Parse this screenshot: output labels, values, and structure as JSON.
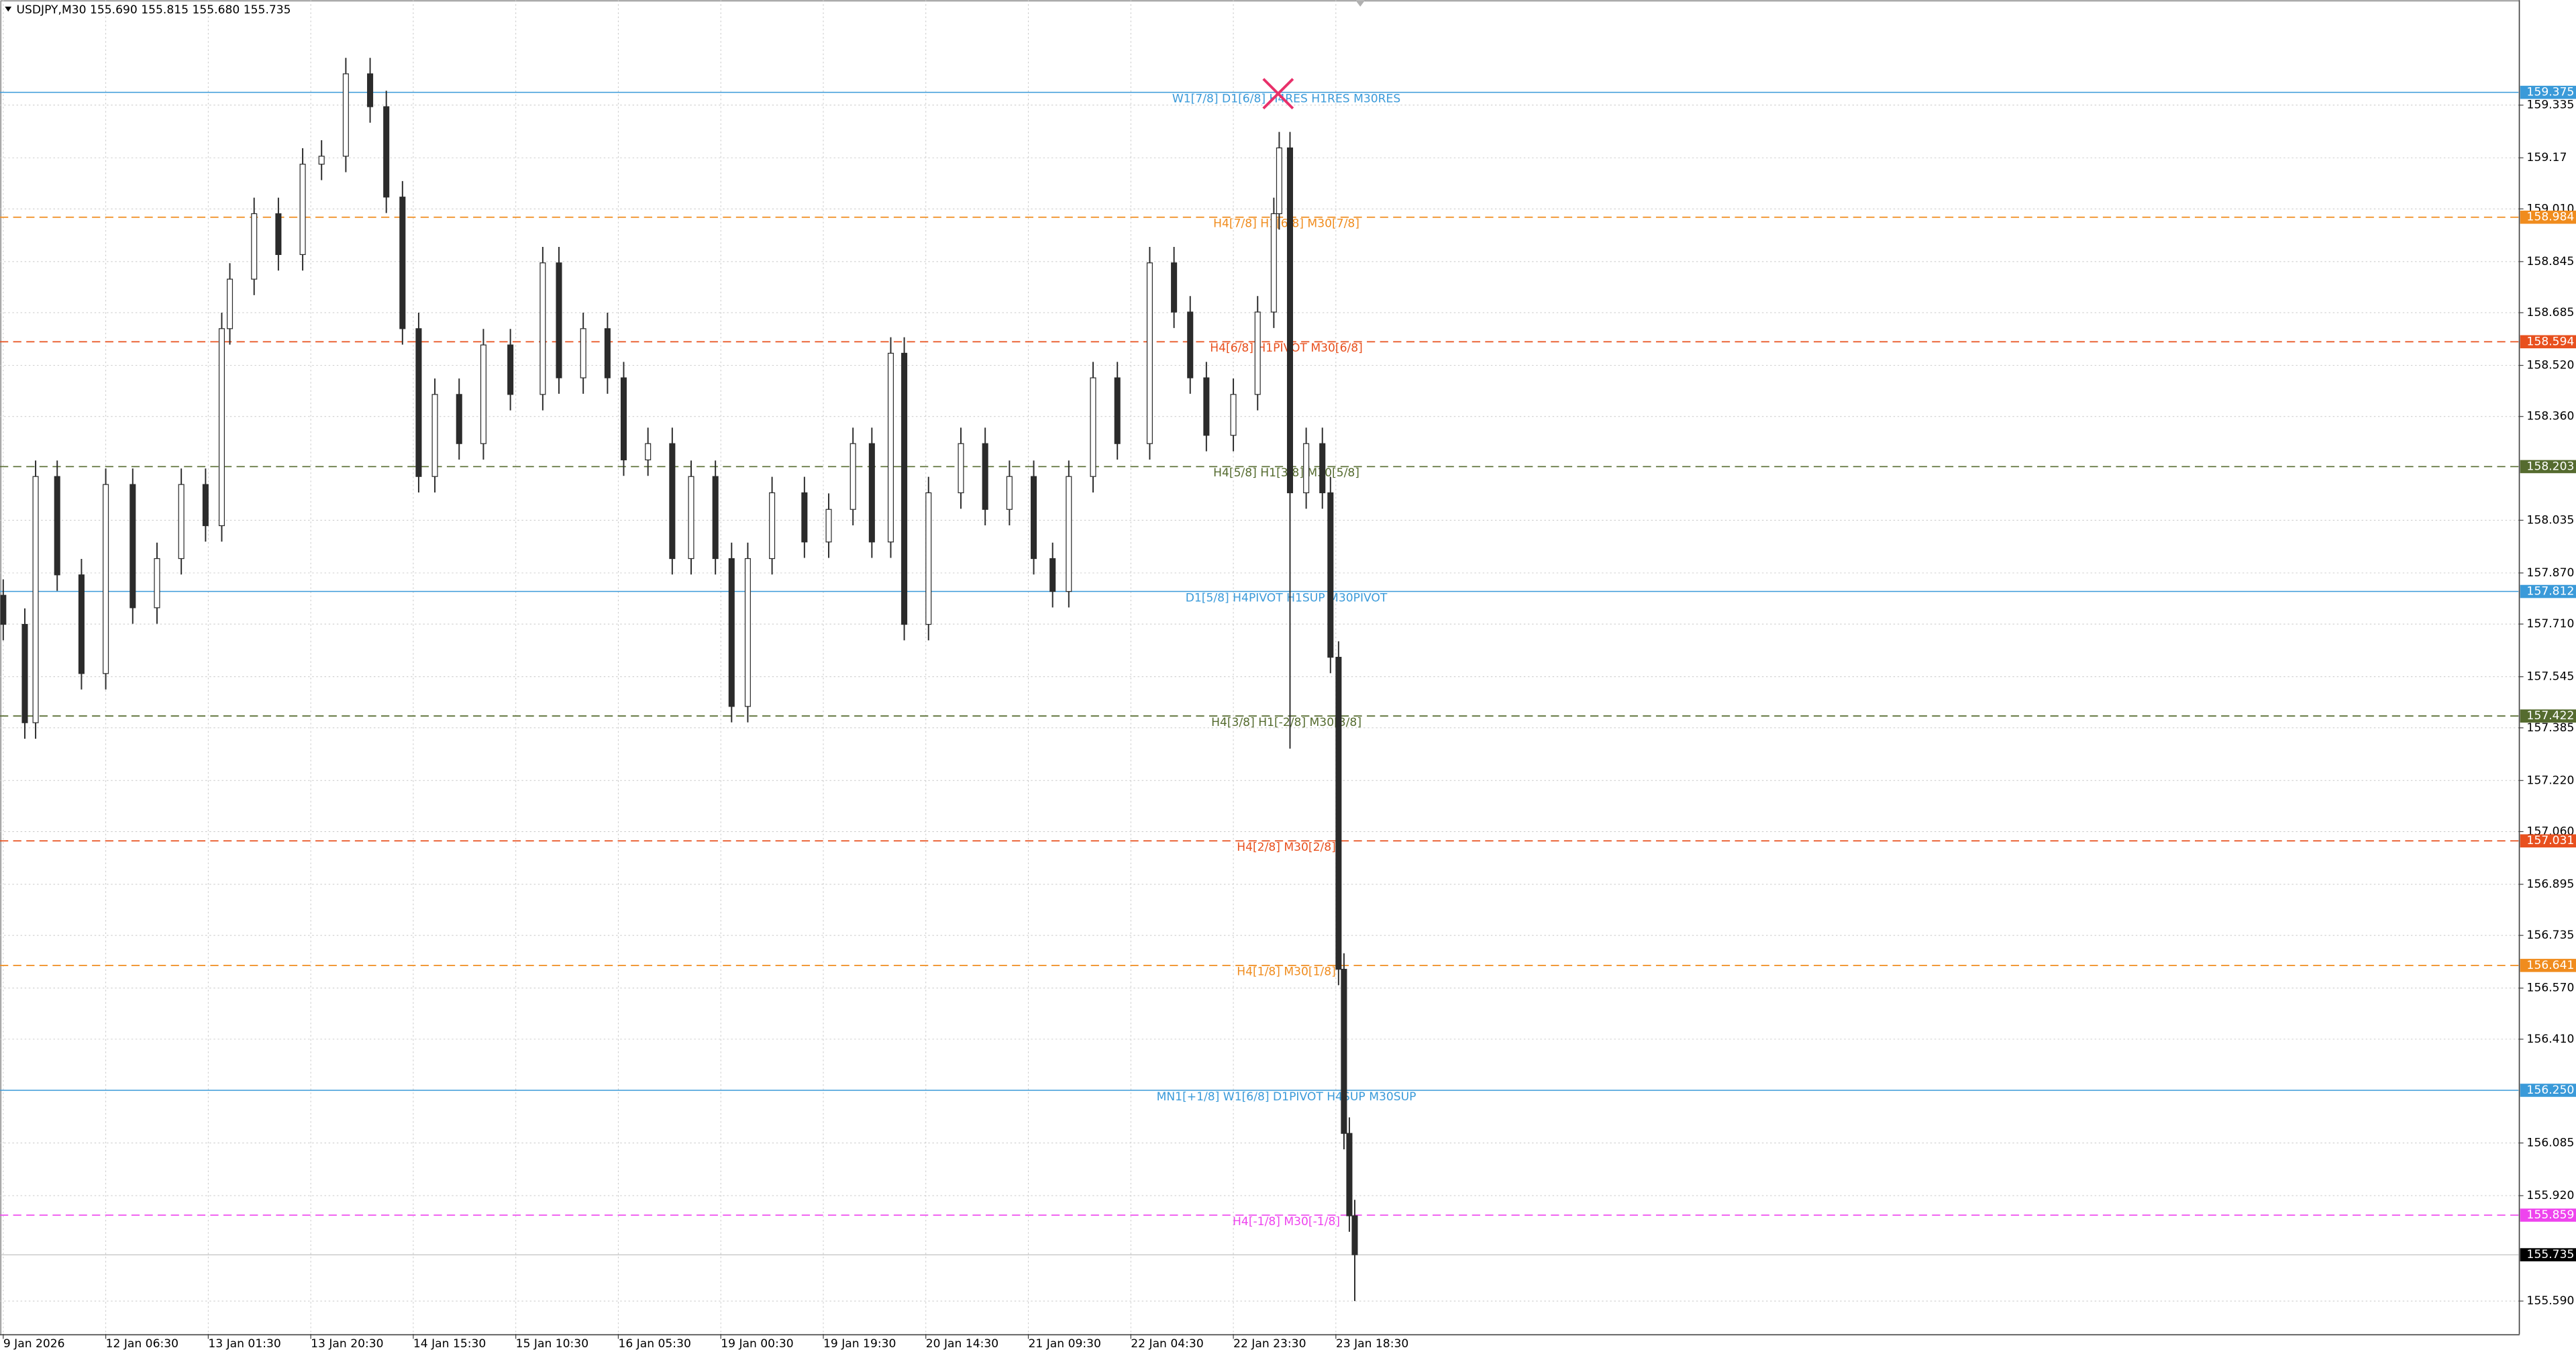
{
  "chart_data": {
    "type": "candlestick",
    "title": "USDJPY,M30  155.690 155.815 155.680 155.735",
    "xlim": [
      -1.2,
      932.4
    ],
    "xticks": [
      {
        "value": 0,
        "label": "9 Jan 2026"
      },
      {
        "value": 38,
        "label": "12 Jan 06:30"
      },
      {
        "value": 76,
        "label": "13 Jan 01:30"
      },
      {
        "value": 114,
        "label": "13 Jan 20:30"
      },
      {
        "value": 152,
        "label": "14 Jan 15:30"
      },
      {
        "value": 190,
        "label": "15 Jan 10:30"
      },
      {
        "value": 228,
        "label": "16 Jan 05:30"
      },
      {
        "value": 266,
        "label": "19 Jan 00:30"
      },
      {
        "value": 304,
        "label": "19 Jan 19:30"
      },
      {
        "value": 342,
        "label": "20 Jan 14:30"
      },
      {
        "value": 380,
        "label": "21 Jan 09:30"
      },
      {
        "value": 418,
        "label": "22 Jan 04:30"
      },
      {
        "value": 456,
        "label": "22 Jan 23:30"
      },
      {
        "value": 494,
        "label": "23 Jan 18:30"
      }
    ],
    "ylim": [
      155.487,
      159.664
    ],
    "yticks": [
      159.335,
      159.17,
      {
        "value": 159.01,
        "label": "159.010"
      },
      158.845,
      158.685,
      {
        "value": 158.52,
        "label": "158.520"
      },
      {
        "value": 158.36,
        "label": "158.360"
      },
      158.035,
      {
        "value": 157.87,
        "label": "157.870"
      },
      {
        "value": 157.71,
        "label": "157.710"
      },
      157.545,
      157.385,
      {
        "value": 157.22,
        "label": "157.220"
      },
      {
        "value": 157.06,
        "label": "157.060"
      },
      156.895,
      156.735,
      {
        "value": 156.57,
        "label": "156.570"
      },
      {
        "value": 156.41,
        "label": "156.410"
      },
      156.085,
      {
        "value": 155.92,
        "label": "155.920"
      },
      {
        "value": 155.59,
        "label": "155.590"
      }
    ],
    "grid": true,
    "color": "#2b2b2b",
    "x": [
      0,
      8,
      12,
      20,
      29,
      38,
      48,
      57,
      66,
      75,
      81,
      84,
      93,
      102,
      111,
      118,
      127,
      136,
      142,
      148,
      154,
      160,
      169,
      178,
      188,
      200,
      206,
      215,
      224,
      230,
      239,
      248,
      255,
      264,
      270,
      276,
      285,
      297,
      306,
      315,
      322,
      329,
      334,
      343,
      355,
      364,
      373,
      382,
      389,
      395,
      404,
      413,
      425,
      434,
      440,
      446,
      456,
      465,
      471,
      473,
      477,
      483,
      489,
      492,
      495,
      497,
      499,
      501
    ],
    "open": [
      157.8,
      157.709,
      157.401,
      158.172,
      157.864,
      157.555,
      158.147,
      157.761,
      157.915,
      158.147,
      158.018,
      158.635,
      158.79,
      158.995,
      158.867,
      159.15,
      159.175,
      159.433,
      159.33,
      159.047,
      158.635,
      158.172,
      158.429,
      158.275,
      158.584,
      158.429,
      158.841,
      158.481,
      158.635,
      158.481,
      158.224,
      158.275,
      157.915,
      158.172,
      157.915,
      157.452,
      157.915,
      158.121,
      157.967,
      158.069,
      158.275,
      157.967,
      158.558,
      157.709,
      158.121,
      158.275,
      158.069,
      158.172,
      157.915,
      157.812,
      158.172,
      158.481,
      158.275,
      158.841,
      158.687,
      158.481,
      158.301,
      158.429,
      158.687,
      158.995,
      159.201,
      158.121,
      158.275,
      158.121,
      157.606,
      156.629,
      156.115,
      155.857
    ],
    "high": [
      157.85,
      157.759,
      158.222,
      158.222,
      157.914,
      158.197,
      158.197,
      157.965,
      158.197,
      158.197,
      158.685,
      158.84,
      159.045,
      159.045,
      159.2,
      159.225,
      159.483,
      159.483,
      159.38,
      159.097,
      158.685,
      158.479,
      158.479,
      158.634,
      158.634,
      158.891,
      158.891,
      158.685,
      158.685,
      158.531,
      158.325,
      158.325,
      158.222,
      158.222,
      157.965,
      157.965,
      158.171,
      158.171,
      158.119,
      158.325,
      158.325,
      158.608,
      158.608,
      158.171,
      158.325,
      158.325,
      158.222,
      158.222,
      157.965,
      158.222,
      158.531,
      158.531,
      158.891,
      158.891,
      158.737,
      158.531,
      158.479,
      158.737,
      159.045,
      159.251,
      159.251,
      158.325,
      158.325,
      158.171,
      157.656,
      156.679,
      156.165,
      155.907
    ],
    "low": [
      157.659,
      157.351,
      157.351,
      157.814,
      157.505,
      157.505,
      157.711,
      157.711,
      157.865,
      157.968,
      157.968,
      158.585,
      158.74,
      158.817,
      158.817,
      159.1,
      159.125,
      159.28,
      158.997,
      158.585,
      158.122,
      158.122,
      158.225,
      158.225,
      158.379,
      158.379,
      158.431,
      158.431,
      158.431,
      158.174,
      158.174,
      157.865,
      157.865,
      157.865,
      157.402,
      157.402,
      157.865,
      157.917,
      157.917,
      158.019,
      157.917,
      157.917,
      157.659,
      157.659,
      158.071,
      158.019,
      158.019,
      157.865,
      157.762,
      157.762,
      158.122,
      158.225,
      158.225,
      158.637,
      158.431,
      158.251,
      158.251,
      158.379,
      158.637,
      158.945,
      157.32,
      158.071,
      158.071,
      157.556,
      156.579,
      156.065,
      155.807,
      155.59
    ],
    "close": [
      157.709,
      157.401,
      158.172,
      157.864,
      157.555,
      158.147,
      157.761,
      157.915,
      158.147,
      158.018,
      158.635,
      158.79,
      158.995,
      158.867,
      159.15,
      159.175,
      159.433,
      159.33,
      159.047,
      158.635,
      158.172,
      158.429,
      158.275,
      158.584,
      158.429,
      158.841,
      158.481,
      158.635,
      158.481,
      158.224,
      158.275,
      157.915,
      158.172,
      157.915,
      157.452,
      157.915,
      158.121,
      157.967,
      158.069,
      158.275,
      157.967,
      158.558,
      157.709,
      158.121,
      158.275,
      158.069,
      158.172,
      157.915,
      157.812,
      158.172,
      158.481,
      158.275,
      158.841,
      158.687,
      158.481,
      158.301,
      158.429,
      158.687,
      158.995,
      159.201,
      158.121,
      158.275,
      158.121,
      157.606,
      156.629,
      156.115,
      155.857,
      155.735
    ],
    "levels": [
      {
        "price": 159.375,
        "text": "W1[7/8] D1[6/8] H4RES H1RES M30RES",
        "color": "#3a9ad9",
        "style": "solid"
      },
      {
        "price": 158.984,
        "text": "H4[7/8] H1[6/8] M30[7/8]",
        "color": "#f08c1e",
        "style": "dashed"
      },
      {
        "price": 158.594,
        "text": "H4[6/8] H1PIVOT M30[6/8]",
        "color": "#e8501e",
        "style": "dashed"
      },
      {
        "price": 158.203,
        "text": "H4[5/8] H1[3/8] M30[5/8]",
        "color": "#556b2f",
        "style": "dashed"
      },
      {
        "price": 157.812,
        "text": "D1[5/8] H4PIVOT H1SUP M30PIVOT",
        "color": "#3a9ad9",
        "style": "solid"
      },
      {
        "price": 157.422,
        "text": "H4[3/8] H1[-2/8] M30[3/8]",
        "color": "#556b2f",
        "style": "dashed"
      },
      {
        "price": 157.031,
        "text": "H4[2/8] M30[2/8]",
        "color": "#e8501e",
        "style": "dashed"
      },
      {
        "price": 156.641,
        "text": "H4[1/8] M30[1/8]",
        "color": "#f08c1e",
        "style": "dashed"
      },
      {
        "price": {
          "value": 156.25,
          "label": "156.250"
        },
        "text": "MN1[+1/8] W1[6/8] D1PIVOT H4SUP M30SUP",
        "color": "#3a9ad9",
        "style": "solid"
      },
      {
        "price": 155.859,
        "text": "H4[-1/8] M30[-1/8]",
        "color": "#ee44ee",
        "style": "dashed"
      }
    ],
    "last_price": 155.735
  }
}
